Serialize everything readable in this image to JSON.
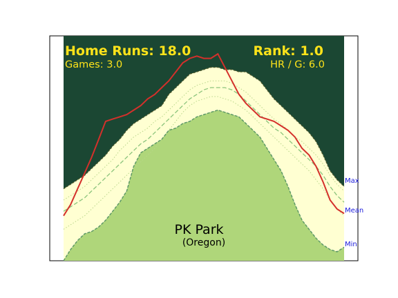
{
  "chart_data": {
    "type": "area",
    "title": "",
    "xlabel": "",
    "ylabel": "",
    "grid": false,
    "x": [
      0,
      1,
      2,
      3,
      4,
      5,
      6,
      7,
      8,
      9,
      10,
      11,
      12,
      13,
      14,
      15,
      16,
      17,
      18,
      19,
      20,
      21,
      22,
      23,
      24,
      25,
      26,
      27,
      28,
      29,
      30,
      31,
      32,
      33,
      34,
      35,
      36,
      37,
      38,
      39,
      40
    ],
    "xlim": [
      0,
      40
    ],
    "ylim": [
      0,
      100
    ],
    "series": [
      {
        "role": "max",
        "values": [
          32,
          34,
          36,
          38,
          41,
          44,
          47,
          51,
          54,
          58,
          61,
          63,
          65,
          67,
          69,
          74,
          77,
          80,
          83,
          84,
          85,
          86,
          86,
          85,
          85,
          84,
          84,
          82,
          80,
          76,
          72,
          69,
          66,
          63,
          60,
          57,
          53,
          47,
          40,
          36,
          33
        ]
      },
      {
        "role": "p75",
        "values": [
          27,
          29,
          31,
          33,
          36,
          39,
          42,
          45,
          49,
          52,
          55,
          57,
          59,
          62,
          64,
          67,
          70,
          73,
          76,
          78,
          79,
          80,
          80,
          80,
          79,
          77,
          75,
          72,
          69,
          66,
          63,
          61,
          58,
          55,
          53,
          50,
          47,
          43,
          38,
          34,
          31
        ]
      },
      {
        "role": "mean",
        "values": [
          22,
          24,
          26,
          28,
          31,
          34,
          37,
          40,
          43,
          46,
          49,
          52,
          54,
          57,
          60,
          63,
          66,
          69,
          72,
          74,
          76,
          77,
          77,
          77,
          76,
          74,
          71,
          68,
          65,
          62,
          59,
          57,
          54,
          51,
          48,
          45,
          42,
          38,
          33,
          29,
          26
        ]
      },
      {
        "role": "p25",
        "values": [
          14,
          16,
          18,
          20,
          23,
          26,
          29,
          32,
          35,
          38,
          41,
          44,
          47,
          50,
          54,
          58,
          62,
          66,
          69,
          71,
          72,
          73,
          73,
          72,
          71,
          69,
          67,
          64,
          61,
          58,
          55,
          52,
          49,
          46,
          43,
          40,
          36,
          32,
          27,
          23,
          20
        ]
      },
      {
        "role": "min",
        "values": [
          0,
          5,
          9,
          12,
          13,
          15,
          18,
          22,
          26,
          31,
          42,
          48,
          50,
          52,
          54,
          58,
          59,
          61,
          62,
          64,
          65,
          66,
          67,
          66,
          65,
          64,
          61,
          58,
          55,
          50,
          45,
          40,
          33,
          25,
          18,
          14,
          10,
          7,
          5,
          4,
          6
        ]
      },
      {
        "role": "selected",
        "values": [
          20,
          25,
          32,
          39,
          46,
          54,
          62,
          63,
          64,
          65,
          67,
          69,
          72,
          74,
          77,
          80,
          84,
          88,
          90,
          91,
          90,
          90,
          92,
          86,
          80,
          74,
          70,
          67,
          64,
          63,
          62,
          60,
          58,
          55,
          50,
          47,
          42,
          35,
          27,
          23,
          21
        ]
      }
    ],
    "legend": [
      "Max",
      "Mean",
      "Min"
    ],
    "stats": {
      "home_runs": "Home Runs: 18.0",
      "rank": "Rank: 1.0",
      "games": "Games: 3.0",
      "hr_per_game": "HR / G: 6.0"
    },
    "park_name": "PK Park",
    "park_state": "(Oregon)",
    "colors": {
      "sky": "#1b4733",
      "band": "#ffffd2",
      "ground": "#afd67a",
      "selected": "#d4302b",
      "mean": "#8cc47c",
      "quartile": "#b8d68a",
      "max_edge": "#4f5a2c",
      "min_edge": "#5e9a68",
      "stat_text": "#ffe31a",
      "label_text": "#1a1adb"
    }
  }
}
